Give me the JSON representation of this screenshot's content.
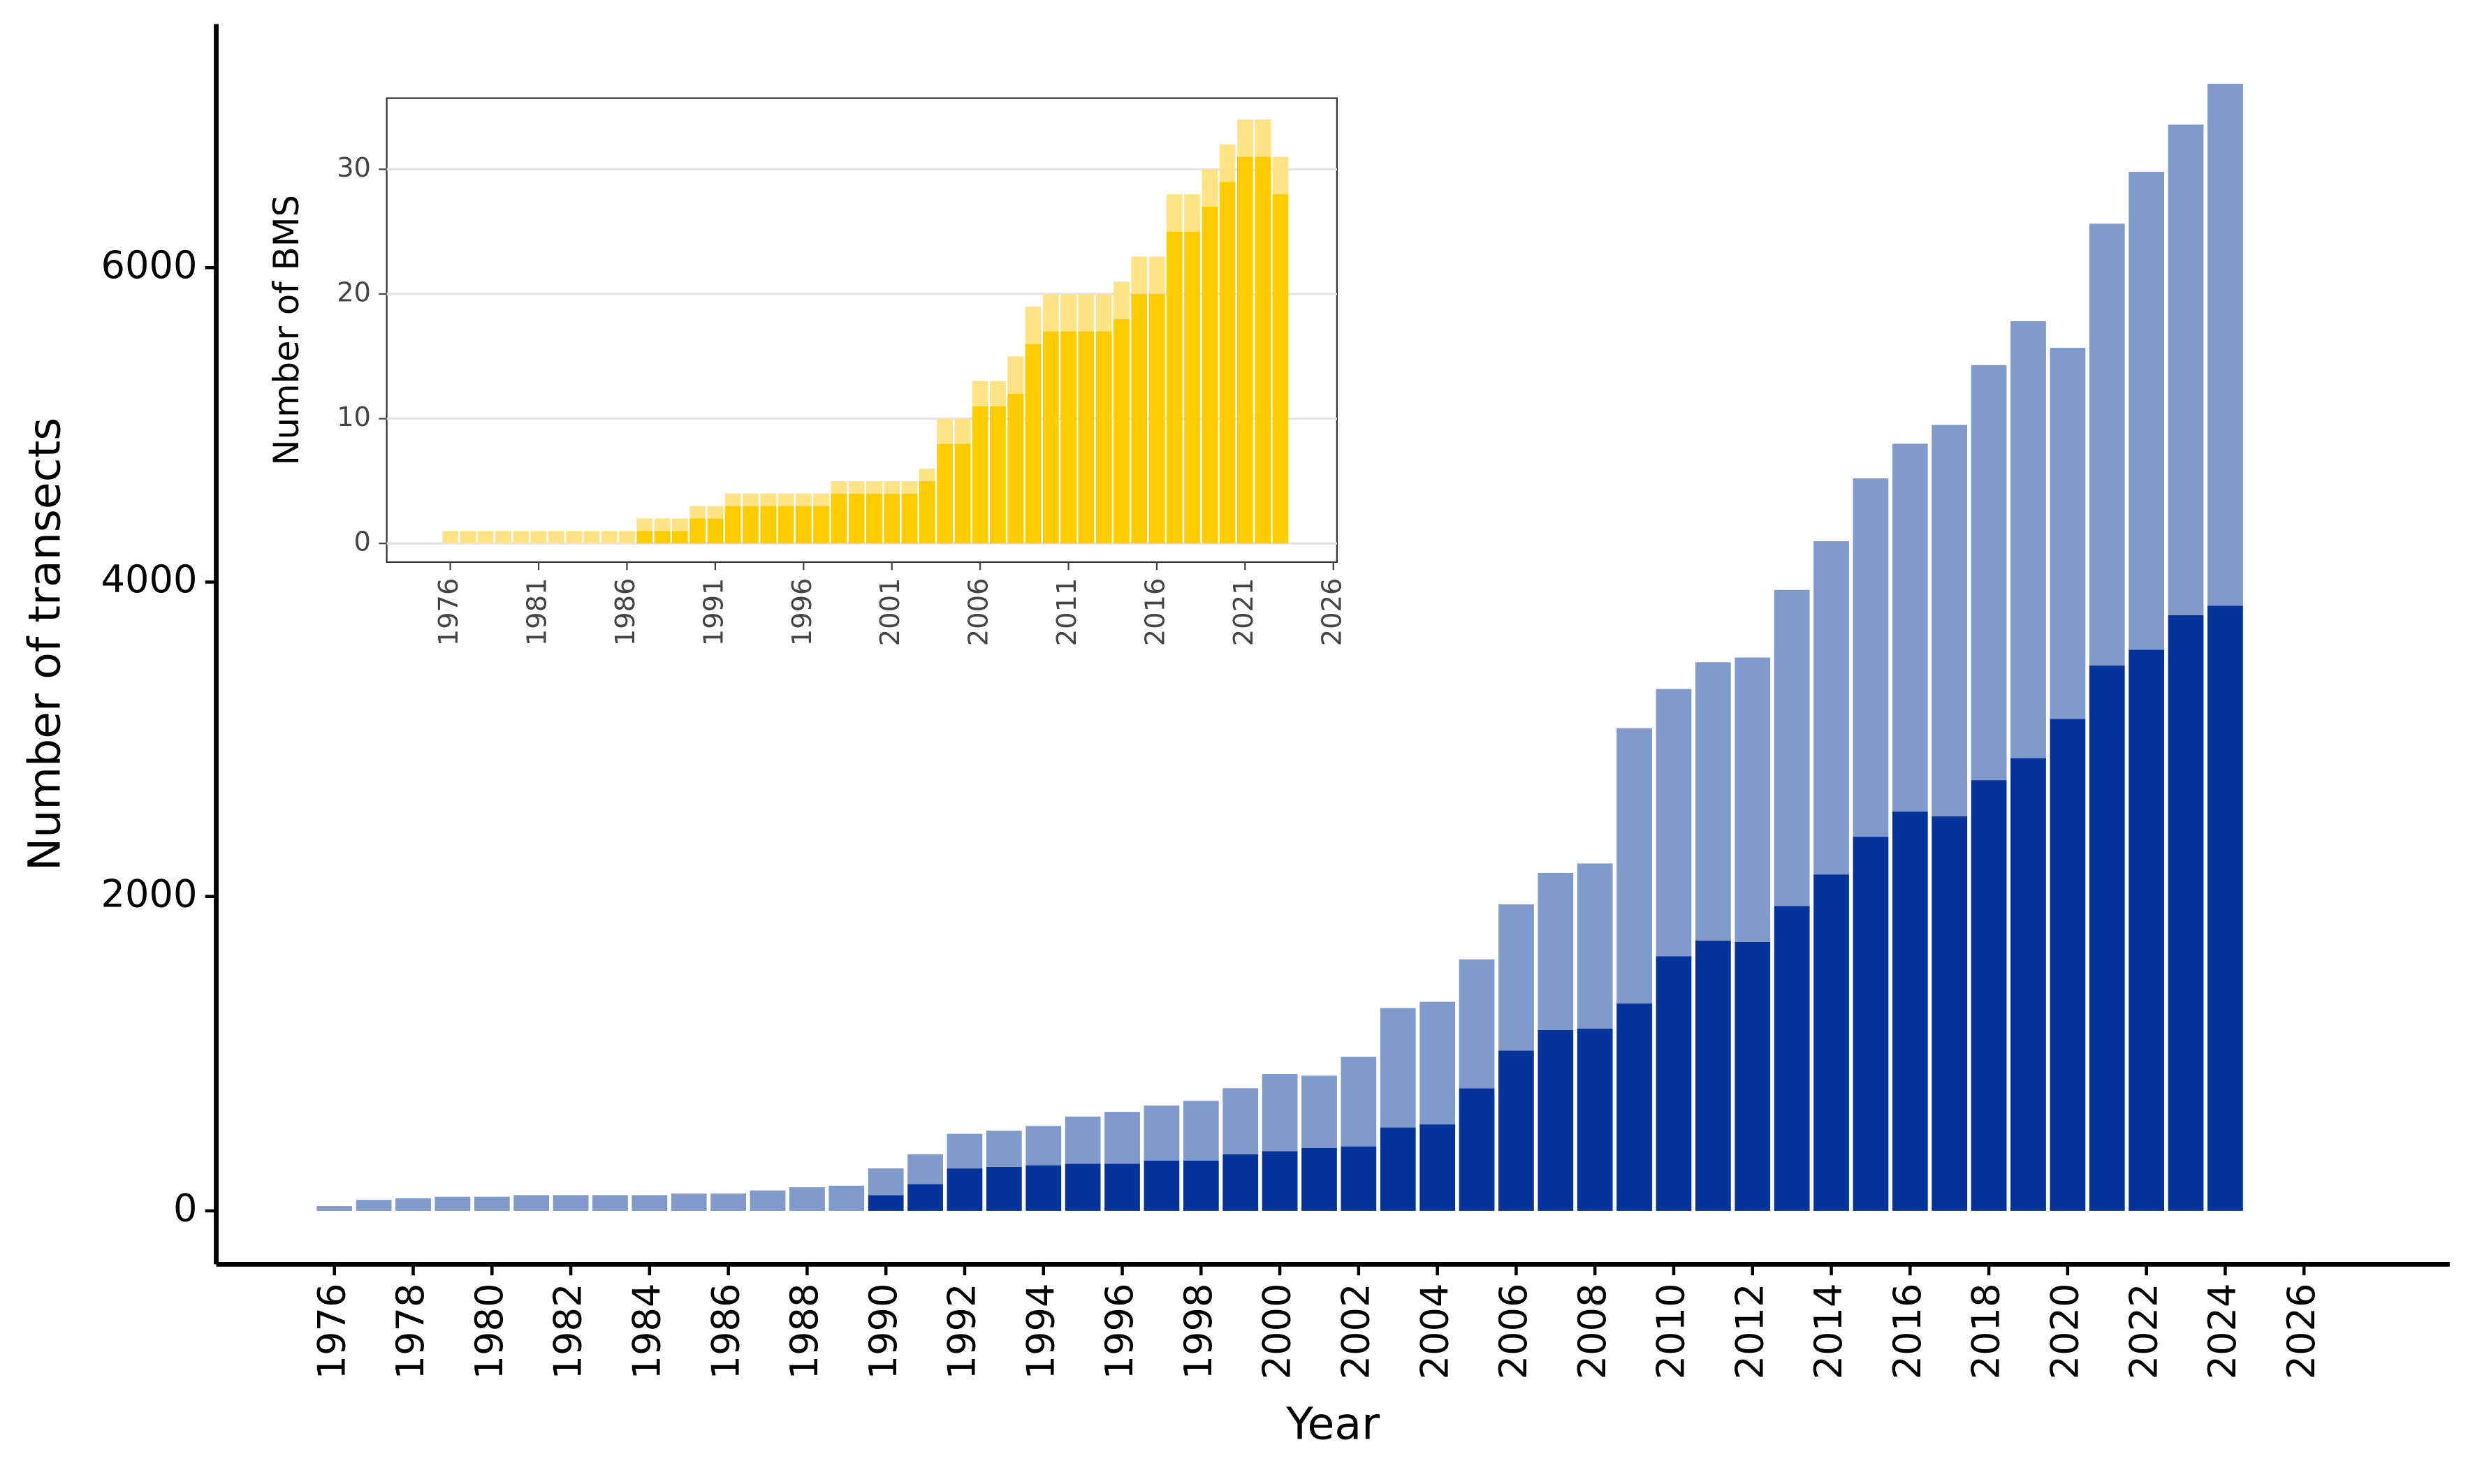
{
  "chart_data": [
    {
      "type": "bar",
      "stacked": true,
      "xlabel": "Year",
      "ylabel": "Number of transects",
      "x": [
        1976,
        1977,
        1978,
        1979,
        1980,
        1981,
        1982,
        1983,
        1984,
        1985,
        1986,
        1987,
        1988,
        1989,
        1990,
        1991,
        1992,
        1993,
        1994,
        1995,
        1996,
        1997,
        1998,
        1999,
        2000,
        2001,
        2002,
        2003,
        2004,
        2005,
        2006,
        2007,
        2008,
        2009,
        2010,
        2011,
        2012,
        2013,
        2014,
        2015,
        2016,
        2017,
        2018,
        2019,
        2020,
        2021,
        2022,
        2023,
        2024
      ],
      "series": [
        {
          "color": "#03339b",
          "values": [
            0,
            0,
            0,
            0,
            0,
            0,
            0,
            0,
            0,
            0,
            0,
            0,
            0,
            0,
            100,
            170,
            270,
            280,
            290,
            300,
            300,
            320,
            320,
            360,
            380,
            400,
            410,
            530,
            550,
            780,
            1020,
            1150,
            1160,
            1320,
            1620,
            1720,
            1710,
            1940,
            2140,
            2380,
            2540,
            2510,
            2740,
            2880,
            3130,
            3470,
            3570,
            3790,
            3850
          ]
        },
        {
          "color": "#7f9acb",
          "values": [
            30,
            70,
            80,
            90,
            90,
            100,
            100,
            100,
            100,
            110,
            110,
            130,
            150,
            160,
            170,
            190,
            220,
            230,
            250,
            300,
            330,
            350,
            380,
            420,
            490,
            460,
            570,
            760,
            780,
            820,
            930,
            1000,
            1050,
            1750,
            1700,
            1770,
            1810,
            2010,
            2120,
            2280,
            2340,
            2490,
            2640,
            2780,
            2360,
            2810,
            3040,
            3120,
            3320
          ]
        }
      ],
      "xlim": [
        1973,
        2029.7
      ],
      "ylim": [
        -340,
        7550
      ],
      "xticks": [
        1976,
        1978,
        1980,
        1982,
        1984,
        1986,
        1988,
        1990,
        1992,
        1994,
        1996,
        1998,
        2000,
        2002,
        2004,
        2006,
        2008,
        2010,
        2012,
        2014,
        2016,
        2018,
        2020,
        2022,
        2024,
        2026
      ],
      "yticks": [
        0,
        2000,
        4000,
        6000
      ],
      "grid": false
    },
    {
      "type": "bar",
      "stacked": true,
      "ylabel": "Number of BMS",
      "x": [
        1976,
        1977,
        1978,
        1979,
        1980,
        1981,
        1982,
        1983,
        1984,
        1985,
        1986,
        1987,
        1988,
        1989,
        1990,
        1991,
        1992,
        1993,
        1994,
        1995,
        1996,
        1997,
        1998,
        1999,
        2000,
        2001,
        2002,
        2003,
        2004,
        2005,
        2006,
        2007,
        2008,
        2009,
        2010,
        2011,
        2012,
        2013,
        2014,
        2015,
        2016,
        2017,
        2018,
        2019,
        2020,
        2021,
        2022,
        2023
      ],
      "series": [
        {
          "color": "#ffcc00",
          "values": [
            0,
            0,
            0,
            0,
            0,
            0,
            0,
            0,
            0,
            0,
            0,
            1,
            1,
            1,
            2,
            2,
            3,
            3,
            3,
            3,
            3,
            3,
            4,
            4,
            4,
            4,
            4,
            5,
            8,
            8,
            11,
            11,
            12,
            16,
            17,
            17,
            17,
            17,
            18,
            20,
            20,
            25,
            25,
            27,
            29,
            31,
            31,
            28
          ]
        },
        {
          "color": "#ffe384",
          "values": [
            1,
            1,
            1,
            1,
            1,
            1,
            1,
            1,
            1,
            1,
            1,
            1,
            1,
            1,
            1,
            1,
            1,
            1,
            1,
            1,
            1,
            1,
            1,
            1,
            1,
            1,
            1,
            1,
            2,
            2,
            2,
            2,
            3,
            3,
            3,
            3,
            3,
            3,
            3,
            3,
            3,
            3,
            3,
            3,
            3,
            3,
            3,
            3
          ]
        }
      ],
      "xlim": [
        1972.4,
        2026.2
      ],
      "ylim": [
        -1.5,
        35.7
      ],
      "xticks": [
        1976,
        1981,
        1986,
        1991,
        1996,
        2001,
        2006,
        2011,
        2016,
        2021,
        2026
      ],
      "yticks": [
        0,
        10,
        20,
        30
      ],
      "grid": true
    }
  ]
}
